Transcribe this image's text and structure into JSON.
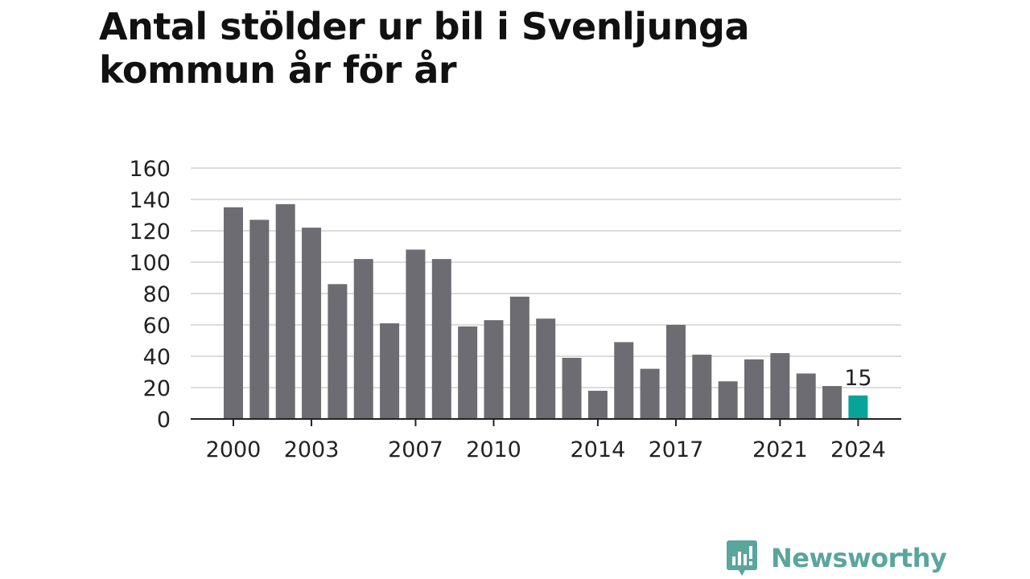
{
  "title": "Antal stölder ur bil i Svenljunga kommun år för år",
  "brand": {
    "name": "Newsworthy",
    "color": "#5aa59c",
    "icon": "bar-chart-speech-bubble-icon"
  },
  "chart_data": {
    "type": "bar",
    "title": "Antal stölder ur bil i Svenljunga kommun år för år",
    "xlabel": "",
    "ylabel": "",
    "ylim": [
      0,
      160
    ],
    "yticks": [
      0,
      20,
      40,
      60,
      80,
      100,
      120,
      140,
      160
    ],
    "xtick_labels": [
      "2000",
      "2003",
      "2007",
      "2010",
      "2014",
      "2017",
      "2021",
      "2024"
    ],
    "grid": true,
    "bar_color": "#6d6c72",
    "highlight_color": "#0aa39a",
    "highlight_category": "2024",
    "annotation": {
      "category": "2024",
      "text": "15"
    },
    "categories": [
      "2000",
      "2001",
      "2002",
      "2003",
      "2004",
      "2005",
      "2006",
      "2007",
      "2008",
      "2009",
      "2010",
      "2011",
      "2012",
      "2013",
      "2014",
      "2015",
      "2016",
      "2017",
      "2018",
      "2019",
      "2020",
      "2021",
      "2022",
      "2023",
      "2024"
    ],
    "values": [
      135,
      127,
      137,
      122,
      86,
      102,
      61,
      108,
      102,
      59,
      63,
      78,
      64,
      39,
      18,
      49,
      32,
      60,
      41,
      24,
      38,
      42,
      29,
      21,
      15
    ]
  }
}
